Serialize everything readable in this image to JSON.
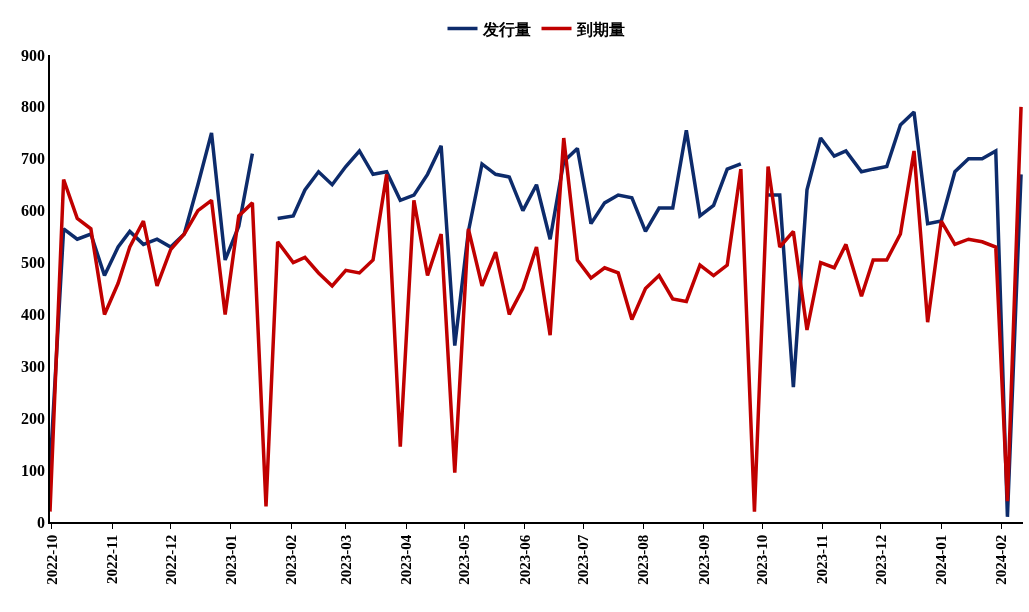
{
  "chart_data": {
    "type": "line",
    "x": [
      "2022-09-30",
      "2022-10-07",
      "2022-10-14",
      "2022-10-21",
      "2022-10-28",
      "2022-11-04",
      "2022-11-10",
      "2022-11-17",
      "2022-11-24",
      "2022-12-01",
      "2022-12-08",
      "2022-12-15",
      "2022-12-22",
      "2022-12-29",
      "2023-01-05",
      "2023-01-12",
      "2023-01-19",
      "2023-01-25",
      "2023-02-02",
      "2023-02-08",
      "2023-02-15",
      "2023-02-22",
      "2023-03-01",
      "2023-03-08",
      "2023-03-15",
      "2023-03-22",
      "2023-03-29",
      "2023-04-05",
      "2023-04-12",
      "2023-04-19",
      "2023-04-26",
      "2023-05-03",
      "2023-05-10",
      "2023-05-17",
      "2023-05-24",
      "2023-05-31",
      "2023-06-07",
      "2023-06-14",
      "2023-06-21",
      "2023-06-28",
      "2023-07-05",
      "2023-07-12",
      "2023-07-19",
      "2023-07-26",
      "2023-08-02",
      "2023-08-09",
      "2023-08-16",
      "2023-08-23",
      "2023-08-30",
      "2023-09-06",
      "2023-09-13",
      "2023-09-20",
      "2023-09-27",
      "2023-10-04",
      "2023-10-10",
      "2023-10-17",
      "2023-10-24",
      "2023-10-31",
      "2023-11-07",
      "2023-11-13",
      "2023-11-21",
      "2023-11-27",
      "2023-12-04",
      "2023-12-11",
      "2023-12-18",
      "2023-12-25",
      "2024-01-01",
      "2024-01-08",
      "2024-01-15",
      "2024-01-22",
      "2024-01-29",
      "2024-02-04",
      "2024-02-11"
    ],
    "series": [
      {
        "name": "发行量",
        "color": "#0d2b6b",
        "values": [
          100,
          565,
          545,
          555,
          475,
          530,
          560,
          535,
          545,
          530,
          555,
          650,
          750,
          505,
          570,
          710,
          null,
          585,
          590,
          640,
          675,
          650,
          685,
          715,
          670,
          675,
          620,
          630,
          670,
          725,
          340,
          560,
          690,
          670,
          665,
          600,
          650,
          545,
          695,
          720,
          575,
          615,
          630,
          625,
          560,
          605,
          605,
          755,
          590,
          610,
          680,
          690,
          null,
          630,
          630,
          260,
          640,
          740,
          705,
          715,
          675,
          680,
          685,
          765,
          790,
          575,
          580,
          675,
          700,
          700,
          715,
          10,
          670
        ]
      },
      {
        "name": "到期量",
        "color": "#c00000",
        "values": [
          20,
          660,
          585,
          565,
          400,
          460,
          530,
          580,
          455,
          525,
          555,
          600,
          620,
          400,
          590,
          615,
          30,
          540,
          500,
          510,
          480,
          455,
          485,
          480,
          505,
          670,
          145,
          620,
          475,
          555,
          95,
          565,
          455,
          520,
          400,
          450,
          530,
          360,
          740,
          505,
          470,
          490,
          480,
          390,
          450,
          475,
          430,
          425,
          495,
          475,
          495,
          680,
          20,
          685,
          530,
          560,
          370,
          500,
          490,
          535,
          435,
          505,
          505,
          555,
          715,
          385,
          580,
          535,
          545,
          540,
          530,
          40,
          800
        ]
      }
    ],
    "xlim": [
      "2022-09-30",
      "2024-02-12"
    ],
    "xticks": [
      {
        "value": "2022-10-01",
        "label": "2022-10"
      },
      {
        "value": "2022-11-01",
        "label": "2022-11"
      },
      {
        "value": "2022-12-01",
        "label": "2022-12"
      },
      {
        "value": "2023-01-01",
        "label": "2023-01"
      },
      {
        "value": "2023-02-01",
        "label": "2023-02"
      },
      {
        "value": "2023-03-01",
        "label": "2023-03"
      },
      {
        "value": "2023-04-01",
        "label": "2023-04"
      },
      {
        "value": "2023-05-01",
        "label": "2023-05"
      },
      {
        "value": "2023-06-01",
        "label": "2023-06"
      },
      {
        "value": "2023-07-01",
        "label": "2023-07"
      },
      {
        "value": "2023-08-01",
        "label": "2023-08"
      },
      {
        "value": "2023-09-01",
        "label": "2023-09"
      },
      {
        "value": "2023-10-01",
        "label": "2023-10"
      },
      {
        "value": "2023-11-01",
        "label": "2023-11"
      },
      {
        "value": "2023-12-01",
        "label": "2023-12"
      },
      {
        "value": "2024-01-01",
        "label": "2024-01"
      },
      {
        "value": "2024-02-01",
        "label": "2024-02"
      }
    ],
    "ylim": [
      0,
      900
    ],
    "yticks": [
      0,
      100,
      200,
      300,
      400,
      500,
      600,
      700,
      800,
      900
    ],
    "legend": "top",
    "marker": "none",
    "line_style": "solid"
  }
}
